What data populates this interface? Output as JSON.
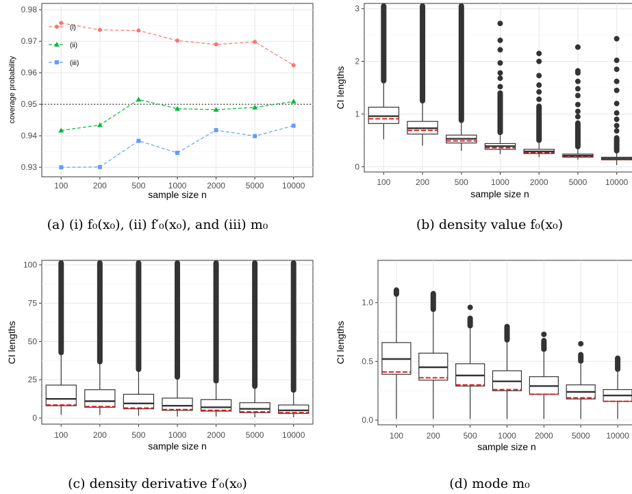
{
  "chart_data": [
    {
      "id": "a",
      "type": "line",
      "caption": "(a) (i) f₀(x₀), (ii) f′₀(x₀), and (iii) m₀",
      "xlabel": "sample size n",
      "ylabel": "coverage probability",
      "categories": [
        "100",
        "200",
        "500",
        "1000",
        "2000",
        "5000",
        "10000"
      ],
      "ylim": [
        0.927,
        0.982
      ],
      "yticks": [
        0.93,
        0.94,
        0.95,
        0.96,
        0.97,
        0.98
      ],
      "ytick_labels": [
        "0.93",
        "0.94",
        "0.95",
        "0.96",
        "0.97",
        "0.98"
      ],
      "reference_line": 0.95,
      "grid": true,
      "legend_position": "top-left",
      "series": [
        {
          "name": "(i)",
          "color": "#F8766D",
          "marker": "circle",
          "values": [
            0.9758,
            0.9736,
            0.9734,
            0.9702,
            0.969,
            0.9698,
            0.9624
          ]
        },
        {
          "name": "(ii)",
          "color": "#00BA38",
          "marker": "triangle",
          "values": [
            0.9417,
            0.9434,
            0.9515,
            0.9486,
            0.9483,
            0.949,
            0.9509
          ]
        },
        {
          "name": "(iii)",
          "color": "#619CFF",
          "marker": "square",
          "values": [
            0.93,
            0.9301,
            0.9384,
            0.9346,
            0.9418,
            0.9399,
            0.9432
          ]
        }
      ]
    },
    {
      "id": "b",
      "type": "box",
      "caption": "(b) density value f₀(x₀)",
      "xlabel": "sample size n",
      "ylabel": "CI lengths",
      "categories": [
        "100",
        "200",
        "500",
        "1000",
        "2000",
        "5000",
        "10000"
      ],
      "ylim": [
        -0.1,
        3.1
      ],
      "yticks": [
        0,
        1,
        2,
        3
      ],
      "ytick_labels": [
        "0",
        "1",
        "2",
        "3"
      ],
      "grid": true,
      "boxes": [
        {
          "whisker_low": 0.52,
          "q1": 0.82,
          "median": 0.96,
          "q3": 1.13,
          "whisker_high": 1.58,
          "reference": 0.91,
          "outlier_range": [
            1.58,
            3.1
          ],
          "outliers": []
        },
        {
          "whisker_low": 0.4,
          "q1": 0.62,
          "median": 0.73,
          "q3": 0.86,
          "whisker_high": 1.2,
          "reference": 0.69,
          "outlier_range": [
            1.2,
            3.1
          ],
          "outliers": []
        },
        {
          "whisker_low": 0.3,
          "q1": 0.45,
          "median": 0.53,
          "q3": 0.6,
          "whisker_high": 0.83,
          "reference": 0.49,
          "outlier_range": [
            0.83,
            3.1
          ],
          "outliers": []
        },
        {
          "whisker_low": 0.24,
          "q1": 0.33,
          "median": 0.39,
          "q3": 0.44,
          "whisker_high": 0.6,
          "reference": 0.36,
          "outlier_range": [
            0.6,
            1.45
          ],
          "outliers": [
            1.52,
            1.68,
            1.78,
            1.97,
            2.22,
            2.4,
            2.72
          ]
        },
        {
          "whisker_low": 0.18,
          "q1": 0.25,
          "median": 0.29,
          "q3": 0.33,
          "whisker_high": 0.45,
          "reference": 0.27,
          "outlier_range": [
            0.45,
            1.2
          ],
          "outliers": [
            1.28,
            1.42,
            1.55,
            1.73,
            2.0,
            2.15
          ]
        },
        {
          "whisker_low": 0.13,
          "q1": 0.18,
          "median": 0.21,
          "q3": 0.24,
          "whisker_high": 0.33,
          "reference": 0.19,
          "outlier_range": [
            0.33,
            0.88
          ],
          "outliers": [
            0.95,
            1.05,
            1.18,
            1.35,
            1.48,
            1.62,
            1.78,
            1.82,
            2.27
          ]
        },
        {
          "whisker_low": 0.03,
          "q1": 0.13,
          "median": 0.155,
          "q3": 0.18,
          "whisker_high": 0.25,
          "reference": 0.14,
          "outlier_range": [
            0.25,
            0.6
          ],
          "outliers": [
            0.68,
            0.78,
            0.9,
            1.02,
            1.2,
            1.45,
            1.62,
            1.85,
            2.02,
            2.43
          ]
        }
      ]
    },
    {
      "id": "c",
      "type": "box",
      "caption": "(c) density derivative f′₀(x₀)",
      "xlabel": "sample size n",
      "ylabel": "CI lengths",
      "categories": [
        "100",
        "200",
        "500",
        "1000",
        "2000",
        "5000",
        "10000"
      ],
      "ylim": [
        -4,
        103
      ],
      "yticks": [
        0,
        25,
        50,
        75,
        100
      ],
      "ytick_labels": [
        "0",
        "25",
        "50",
        "75",
        "100"
      ],
      "grid": true,
      "boxes": [
        {
          "whisker_low": 2,
          "q1": 8,
          "median": 12.5,
          "q3": 21.5,
          "whisker_high": 41,
          "reference": 8.5,
          "outlier_range": [
            41,
            103
          ],
          "outliers": []
        },
        {
          "whisker_low": 2,
          "q1": 7,
          "median": 11,
          "q3": 18.5,
          "whisker_high": 35,
          "reference": 7.5,
          "outlier_range": [
            35,
            103
          ],
          "outliers": []
        },
        {
          "whisker_low": 1.5,
          "q1": 6,
          "median": 9.5,
          "q3": 15.5,
          "whisker_high": 30,
          "reference": 6.5,
          "outlier_range": [
            30,
            103
          ],
          "outliers": []
        },
        {
          "whisker_low": 1,
          "q1": 5,
          "median": 8,
          "q3": 13,
          "whisker_high": 25,
          "reference": 5.5,
          "outlier_range": [
            25,
            103
          ],
          "outliers": []
        },
        {
          "whisker_low": 1,
          "q1": 4.5,
          "median": 7,
          "q3": 12,
          "whisker_high": 22.5,
          "reference": 5,
          "outlier_range": [
            22.5,
            103
          ],
          "outliers": []
        },
        {
          "whisker_low": 0.5,
          "q1": 3.5,
          "median": 6,
          "q3": 10,
          "whisker_high": 19,
          "reference": 4,
          "outlier_range": [
            19,
            103
          ],
          "outliers": []
        },
        {
          "whisker_low": 0.5,
          "q1": 3,
          "median": 5,
          "q3": 8.5,
          "whisker_high": 16.5,
          "reference": 3.5,
          "outlier_range": [
            16.5,
            103
          ],
          "outliers": []
        }
      ]
    },
    {
      "id": "d",
      "type": "box",
      "caption": "(d) mode m₀",
      "xlabel": "sample size n",
      "ylabel": "CI lengths",
      "categories": [
        "100",
        "200",
        "500",
        "1000",
        "2000",
        "5000",
        "10000"
      ],
      "ylim": [
        -0.04,
        1.36
      ],
      "yticks": [
        0,
        0.5,
        1
      ],
      "ytick_labels": [
        "0.0",
        "0.5",
        "1.0"
      ],
      "grid": true,
      "boxes": [
        {
          "whisker_low": 0.01,
          "q1": 0.39,
          "median": 0.52,
          "q3": 0.66,
          "whisker_high": 1.05,
          "reference": 0.41,
          "outlier_range": [
            1.05,
            1.13
          ],
          "outliers": []
        },
        {
          "whisker_low": 0.01,
          "q1": 0.34,
          "median": 0.45,
          "q3": 0.57,
          "whisker_high": 0.92,
          "reference": 0.36,
          "outlier_range": [
            0.92,
            1.1
          ],
          "outliers": []
        },
        {
          "whisker_low": 0.01,
          "q1": 0.29,
          "median": 0.38,
          "q3": 0.48,
          "whisker_high": 0.78,
          "reference": 0.3,
          "outlier_range": [
            0.78,
            0.89
          ],
          "outliers": [
            0.96
          ]
        },
        {
          "whisker_low": 0.01,
          "q1": 0.25,
          "median": 0.33,
          "q3": 0.42,
          "whisker_high": 0.66,
          "reference": 0.26,
          "outlier_range": [
            0.66,
            0.82
          ],
          "outliers": []
        },
        {
          "whisker_low": 0.01,
          "q1": 0.22,
          "median": 0.29,
          "q3": 0.37,
          "whisker_high": 0.58,
          "reference": 0.22,
          "outlier_range": [
            0.58,
            0.7
          ],
          "outliers": [
            0.73
          ]
        },
        {
          "whisker_low": 0.01,
          "q1": 0.18,
          "median": 0.24,
          "q3": 0.3,
          "whisker_high": 0.48,
          "reference": 0.19,
          "outlier_range": [
            0.48,
            0.58
          ],
          "outliers": [
            0.65
          ]
        },
        {
          "whisker_low": 0.01,
          "q1": 0.16,
          "median": 0.21,
          "q3": 0.26,
          "whisker_high": 0.41,
          "reference": 0.16,
          "outlier_range": [
            0.41,
            0.55
          ],
          "outliers": []
        }
      ]
    }
  ]
}
